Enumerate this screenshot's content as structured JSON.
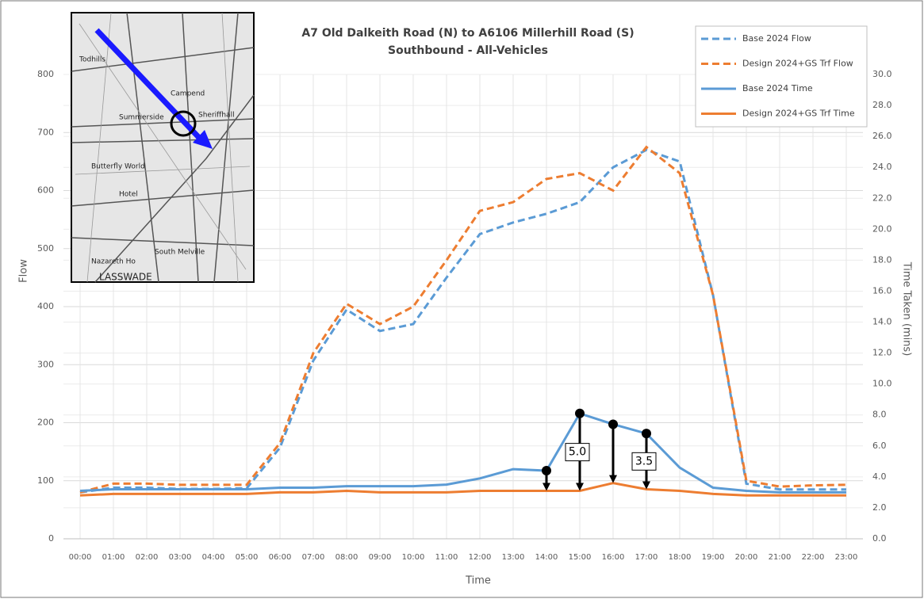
{
  "chart_data": {
    "type": "line",
    "title": "A7 Old Dalkeith Road (N) to A6106 Millerhill Road (S)",
    "subtitle": "Southbound - All-Vehicles",
    "x_label": "Time",
    "y_label": "Flow",
    "y2_label": "Time Taken (mins)",
    "categories": [
      "00:00",
      "01:00",
      "02:00",
      "03:00",
      "04:00",
      "05:00",
      "06:00",
      "07:00",
      "08:00",
      "09:00",
      "10:00",
      "11:00",
      "12:00",
      "13:00",
      "14:00",
      "15:00",
      "16:00",
      "17:00",
      "18:00",
      "19:00",
      "20:00",
      "21:00",
      "22:00",
      "23:00"
    ],
    "series": [
      {
        "name": "Base 2024 Flow",
        "color": "#5b9bd5",
        "dashed": true,
        "values": [
          80,
          88,
          88,
          86,
          86,
          87,
          157,
          307,
          395,
          358,
          370,
          450,
          525,
          545,
          560,
          580,
          640,
          670,
          650,
          420,
          95,
          85,
          85,
          85
        ]
      },
      {
        "name": "Design 2024+GS Trf Flow",
        "color": "#ed7d31",
        "dashed": true,
        "values": [
          80,
          95,
          95,
          93,
          93,
          93,
          165,
          320,
          405,
          370,
          400,
          480,
          565,
          580,
          620,
          630,
          600,
          675,
          630,
          420,
          100,
          90,
          92,
          93
        ]
      },
      {
        "name": "Base 2024 Time",
        "color": "#5b9bd5",
        "dashed": false,
        "axis": "y2",
        "values": [
          3.1,
          3.2,
          3.2,
          3.2,
          3.2,
          3.2,
          3.3,
          3.3,
          3.4,
          3.4,
          3.4,
          3.5,
          3.9,
          4.5,
          4.4,
          8.1,
          7.4,
          6.8,
          4.6,
          3.3,
          3.1,
          3.0,
          3.0,
          3.0
        ]
      },
      {
        "name": "Design 2024+GS Trf Time",
        "color": "#ed7d31",
        "dashed": false,
        "axis": "y2",
        "values": [
          2.8,
          2.9,
          2.9,
          2.9,
          2.9,
          2.9,
          3.0,
          3.0,
          3.1,
          3.0,
          3.0,
          3.0,
          3.1,
          3.1,
          3.1,
          3.1,
          3.6,
          3.2,
          3.1,
          2.9,
          2.8,
          2.8,
          2.8,
          2.8
        ]
      }
    ],
    "ylim": [
      0,
      800
    ],
    "yticks": [
      0,
      100,
      200,
      300,
      400,
      500,
      600,
      700,
      800
    ],
    "y2lim": [
      0,
      30
    ],
    "y2ticks": [
      {
        "value": 0,
        "label": "0.0"
      },
      {
        "value": 2,
        "label": "2.0"
      },
      {
        "value": 4,
        "label": "4.0"
      },
      {
        "value": 6,
        "label": "6.0"
      },
      {
        "value": 8,
        "label": "8.0"
      },
      {
        "value": 10,
        "label": "10.0"
      },
      {
        "value": 12,
        "label": "12.0"
      },
      {
        "value": 14,
        "label": "14.0"
      },
      {
        "value": 16,
        "label": "16.0"
      },
      {
        "value": 18,
        "label": "18.0"
      },
      {
        "value": 20,
        "label": "20.0"
      },
      {
        "value": 22,
        "label": "22.0"
      },
      {
        "value": 24,
        "label": "24.0"
      },
      {
        "value": 26,
        "label": "26.0"
      },
      {
        "value": 28,
        "label": "28.0"
      },
      {
        "value": 30,
        "label": "30.0"
      }
    ],
    "grid": true,
    "legend": "top-right",
    "annotations": [
      {
        "x": "14:00"
      },
      {
        "x": "15:00",
        "text": "5.0"
      },
      {
        "x": "16:00"
      },
      {
        "x": "17:00",
        "text": "3.5"
      }
    ]
  },
  "inset_map": {
    "labels": [
      "Summerside",
      "Sheriffhall",
      "Campend",
      "Butterfly World",
      "Hotel",
      "South Melville",
      "LASSWADE",
      "Nazareth Ho",
      "Todhills"
    ]
  }
}
